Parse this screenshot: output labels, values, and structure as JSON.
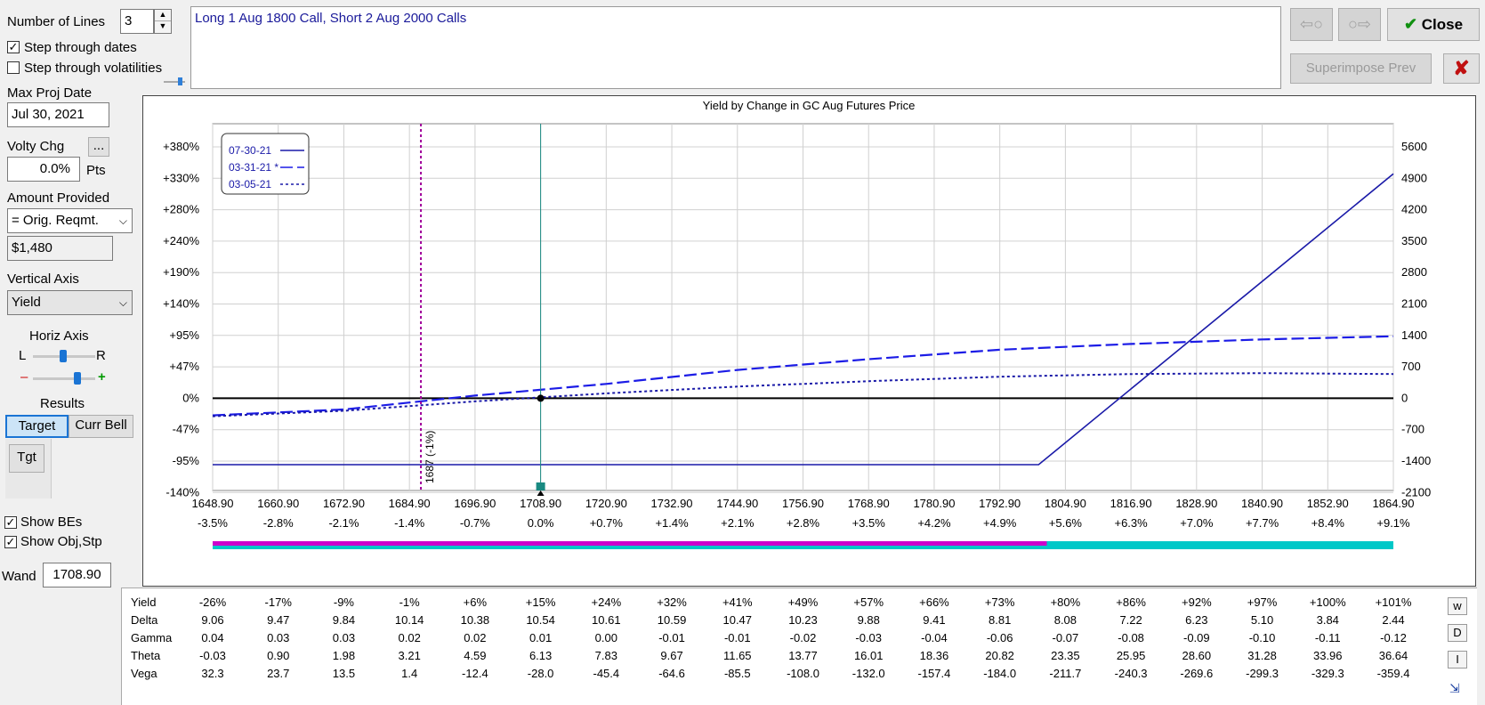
{
  "controls": {
    "num_lines_label": "Number of Lines",
    "num_lines_value": "3",
    "step_dates_label": "Step through dates",
    "step_dates_checked": true,
    "step_vols_label": "Step through volatilities",
    "step_vols_checked": false,
    "max_proj_label": "Max Proj Date",
    "max_proj_value": "Jul 30, 2021",
    "volty_label": "Volty Chg",
    "volty_button": "...",
    "volty_value": "0.0%",
    "volty_units": "Pts",
    "amount_label": "Amount Provided",
    "amount_select": "= Orig. Reqmt.",
    "amount_value": "$1,480",
    "vertical_axis_label": "Vertical Axis",
    "vertical_axis_value": "Yield",
    "horiz_axis_label": "Horiz Axis",
    "horiz_left": "L",
    "horiz_right": "R",
    "zoom_minus": "–",
    "zoom_plus": "+",
    "results_label": "Results",
    "tab_target": "Target",
    "tab_curr_bell": "Curr Bell",
    "tgt_button": "Tgt",
    "show_bes_label": "Show BEs",
    "show_bes_checked": true,
    "show_obj_label": "Show Obj,Stp",
    "show_obj_checked": true,
    "wand_label": "Wand",
    "wand_value": "1708.90"
  },
  "description": "Long 1 Aug 1800 Call, Short 2 Aug 2000 Calls",
  "top_buttons": {
    "back_icon": "arrow-left-circle-icon",
    "forward_icon": "arrow-right-circle-icon",
    "close_label": "Close",
    "close_check": "✔",
    "superimpose_label": "Superimpose Prev",
    "delete_glyph": "✘"
  },
  "colors": {
    "series_blue": "#1a1aa8",
    "dash_blue": "#1c1ce6",
    "be_marker": "#a0009a",
    "wand_line": "#198a82",
    "bar_magenta": "#cc00cc",
    "bar_cyan": "#00c8c8"
  },
  "chart_data": {
    "type": "line",
    "title": "Yield by Change in GC Aug Futures Price",
    "x_ticks": [
      "1648.90",
      "1660.90",
      "1672.90",
      "1684.90",
      "1696.90",
      "1708.90",
      "1720.90",
      "1732.90",
      "1744.90",
      "1756.90",
      "1768.90",
      "1780.90",
      "1792.90",
      "1804.90",
      "1816.90",
      "1828.90",
      "1840.90",
      "1852.90",
      "1864.90"
    ],
    "x_pct_ticks": [
      "-3.5%",
      "-2.8%",
      "-2.1%",
      "-1.4%",
      "-0.7%",
      "0.0%",
      "+0.7%",
      "+1.4%",
      "+2.1%",
      "+2.8%",
      "+3.5%",
      "+4.2%",
      "+4.9%",
      "+5.6%",
      "+6.3%",
      "+7.0%",
      "+7.7%",
      "+8.4%",
      "+9.1%"
    ],
    "y_left_ticks": [
      "+380%",
      "+330%",
      "+280%",
      "+240%",
      "+190%",
      "+140%",
      "+95%",
      "+47%",
      "0%",
      "-47%",
      "-95%",
      "-140%"
    ],
    "y_right_ticks": [
      "5600",
      "4900",
      "4200",
      "3500",
      "2800",
      "2100",
      "1400",
      "700",
      "0",
      "-700",
      "-1400",
      "-2100"
    ],
    "xlim": [
      1648.9,
      1864.9
    ],
    "ylim": [
      -2100,
      5600
    ],
    "grid": true,
    "legend_position": "top-left",
    "series": [
      {
        "name": "07-30-21",
        "style": "solid",
        "x": [
          1648.9,
          1800.0,
          1864.9
        ],
        "y": [
          -1480,
          -1480,
          5000
        ]
      },
      {
        "name": "03-31-21 *",
        "style": "dashed",
        "x": [
          1648.9,
          1672.9,
          1696.9,
          1720.9,
          1744.9,
          1768.9,
          1792.9,
          1816.9,
          1840.9,
          1864.9
        ],
        "y": [
          -380,
          -250,
          60,
          320,
          630,
          870,
          1080,
          1210,
          1310,
          1380
        ]
      },
      {
        "name": "03-05-21",
        "style": "dotted",
        "x": [
          1648.9,
          1672.9,
          1696.9,
          1720.9,
          1744.9,
          1768.9,
          1792.9,
          1816.9,
          1840.9,
          1864.9
        ],
        "y": [
          -400,
          -280,
          -70,
          110,
          260,
          380,
          480,
          540,
          560,
          540
        ]
      }
    ],
    "breakeven": {
      "x": 1687.0,
      "label": "1687 (-1%)"
    },
    "wand_x": 1708.9,
    "bar_split_x": 1801.5
  },
  "greeks": {
    "rows": [
      {
        "name": "Yield",
        "values": [
          "-26%",
          "-17%",
          "-9%",
          "-1%",
          "+6%",
          "+15%",
          "+24%",
          "+32%",
          "+41%",
          "+49%",
          "+57%",
          "+66%",
          "+73%",
          "+80%",
          "+86%",
          "+92%",
          "+97%",
          "+100%",
          "+101%"
        ]
      },
      {
        "name": "Delta",
        "values": [
          "9.06",
          "9.47",
          "9.84",
          "10.14",
          "10.38",
          "10.54",
          "10.61",
          "10.59",
          "10.47",
          "10.23",
          "9.88",
          "9.41",
          "8.81",
          "8.08",
          "7.22",
          "6.23",
          "5.10",
          "3.84",
          "2.44"
        ]
      },
      {
        "name": "Gamma",
        "values": [
          "0.04",
          "0.03",
          "0.03",
          "0.02",
          "0.02",
          "0.01",
          "0.00",
          "-0.01",
          "-0.01",
          "-0.02",
          "-0.03",
          "-0.04",
          "-0.06",
          "-0.07",
          "-0.08",
          "-0.09",
          "-0.10",
          "-0.11",
          "-0.12"
        ]
      },
      {
        "name": "Theta",
        "values": [
          "-0.03",
          "0.90",
          "1.98",
          "3.21",
          "4.59",
          "6.13",
          "7.83",
          "9.67",
          "11.65",
          "13.77",
          "16.01",
          "18.36",
          "20.82",
          "23.35",
          "25.95",
          "28.60",
          "31.28",
          "33.96",
          "36.64"
        ]
      },
      {
        "name": "Vega",
        "values": [
          "32.3",
          "23.7",
          "13.5",
          "1.4",
          "-12.4",
          "-28.0",
          "-45.4",
          "-64.6",
          "-85.5",
          "-108.0",
          "-132.0",
          "-157.4",
          "-184.0",
          "-211.7",
          "-240.3",
          "-269.6",
          "-299.3",
          "-329.3",
          "-359.4"
        ]
      }
    ],
    "side_buttons": [
      "w",
      "D",
      "I"
    ]
  }
}
